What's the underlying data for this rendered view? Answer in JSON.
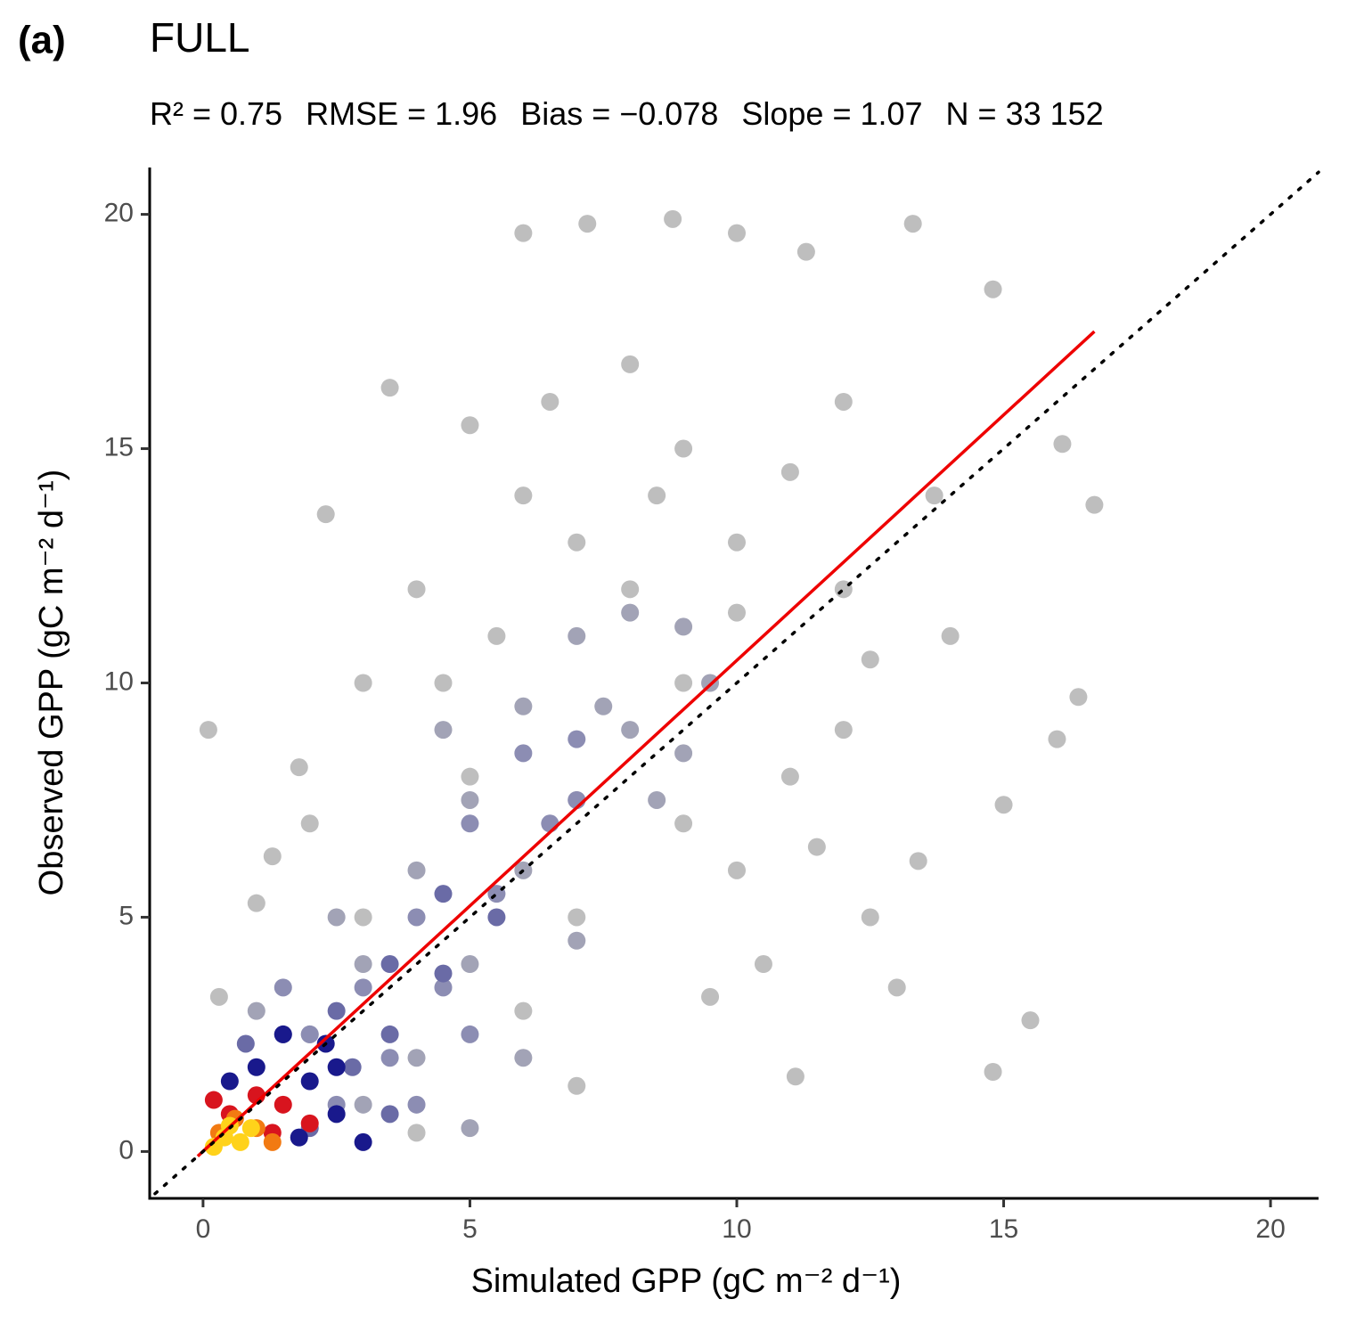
{
  "chart_data": {
    "type": "scatter",
    "panel_label": "(a)",
    "title": "FULL",
    "subtitle": [
      "R² = 0.75",
      "RMSE = 1.96",
      "Bias = −0.078",
      "Slope = 1.07",
      "N = 33 152"
    ],
    "x_label": "Simulated GPP (gC m⁻² d⁻¹)",
    "y_label": "Observed GPP (gC m⁻² d⁻¹)",
    "xlim": [
      -1,
      20.9
    ],
    "ylim": [
      -1,
      21
    ],
    "xticks": [
      0,
      5,
      10,
      15,
      20
    ],
    "yticks": [
      0,
      5,
      10,
      15,
      20
    ],
    "grid": false,
    "series": [
      {
        "color": "#bebebe",
        "x": [
          0.1,
          3.5,
          2.3,
          6,
          7.2,
          8.8,
          10,
          13.3,
          11.3,
          14.8,
          16.1,
          16.7,
          15.5,
          14.8,
          11.1,
          15,
          16,
          16.4,
          13.4,
          12.5,
          9.5,
          7,
          4,
          1,
          0.3,
          1.3,
          1.8,
          5,
          8,
          12,
          13.7,
          14,
          12,
          10,
          8,
          6,
          4,
          3,
          2,
          10,
          11,
          9,
          7,
          6,
          9,
          12,
          5,
          3,
          13,
          10.5,
          9,
          11,
          7,
          6.5,
          8.5,
          10,
          12.5,
          11.5,
          5.5,
          4.5
        ],
        "y": [
          9,
          16.3,
          13.6,
          19.6,
          19.8,
          19.9,
          19.6,
          19.8,
          19.2,
          18.4,
          15.1,
          13.8,
          2.8,
          1.7,
          1.6,
          7.4,
          8.8,
          9.7,
          6.2,
          5,
          3.3,
          1.4,
          0.4,
          5.3,
          3.3,
          6.3,
          8.2,
          15.5,
          16.8,
          16,
          14,
          11,
          9,
          13,
          12,
          14,
          12,
          10,
          7,
          6,
          8,
          10,
          5,
          3,
          7,
          12,
          8,
          5,
          3.5,
          4,
          15,
          14.5,
          13,
          16,
          14,
          11.5,
          10.5,
          6.5,
          11,
          10
        ]
      },
      {
        "color": "#a2a3b6",
        "x": [
          8,
          7,
          9,
          6,
          8,
          9.5,
          5,
          7,
          4,
          6,
          8.5,
          3,
          5,
          7,
          2,
          4,
          6,
          1,
          3,
          5,
          9,
          7.5,
          2.5,
          4.5
        ],
        "y": [
          11.5,
          11,
          11.2,
          9.5,
          9,
          10,
          7.5,
          7.5,
          6,
          6,
          7.5,
          4,
          4,
          4.5,
          2.5,
          2,
          2,
          3,
          1,
          0.5,
          8.5,
          9.5,
          5,
          9
        ]
      },
      {
        "color": "#8c8db3",
        "x": [
          6,
          7,
          5,
          6.5,
          4,
          5.5,
          3,
          4.5,
          2,
          3.5,
          1.5,
          5,
          2.5,
          4,
          7
        ],
        "y": [
          8.5,
          8.8,
          7,
          7,
          5,
          5.5,
          3.5,
          3.5,
          2.5,
          2,
          3.5,
          2.5,
          1,
          1,
          7.5
        ]
      },
      {
        "color": "#6a6ba6",
        "x": [
          4.5,
          5.5,
          3.5,
          4.5,
          2.5,
          3.5,
          1.5,
          2.8,
          0.8,
          3.5,
          2
        ],
        "y": [
          5.5,
          5,
          4,
          3.8,
          3,
          2.5,
          2.5,
          1.8,
          2.3,
          0.8,
          0.5
        ]
      },
      {
        "color": "#19198c",
        "x": [
          1.5,
          2.3,
          1,
          2,
          2.5,
          0.5,
          1.8,
          2.5,
          3
        ],
        "y": [
          2.5,
          2.3,
          1.8,
          1.5,
          0.8,
          1.5,
          0.3,
          1.8,
          0.2
        ]
      },
      {
        "color": "#d8141e",
        "x": [
          1,
          1.5,
          0.5,
          1.3,
          2,
          0.2
        ],
        "y": [
          1.2,
          1,
          0.8,
          0.4,
          0.6,
          1.1
        ]
      },
      {
        "color": "#f27a12",
        "x": [
          0.6,
          1,
          0.3,
          1.3
        ],
        "y": [
          0.7,
          0.5,
          0.4,
          0.2
        ]
      },
      {
        "color": "#ffd21a",
        "x": [
          0.4,
          0.7,
          0.9,
          0.2,
          0.5
        ],
        "y": [
          0.3,
          0.2,
          0.5,
          0.1,
          0.55
        ]
      }
    ],
    "fit_line": {
      "color": "#ee0000",
      "x": [
        -0.1,
        16.7
      ],
      "y": [
        -0.1,
        17.5
      ]
    },
    "reference_line": {
      "color": "#000000",
      "style": "dotted",
      "x": [
        -0.9,
        20.9
      ],
      "y": [
        -0.9,
        20.9
      ]
    }
  }
}
